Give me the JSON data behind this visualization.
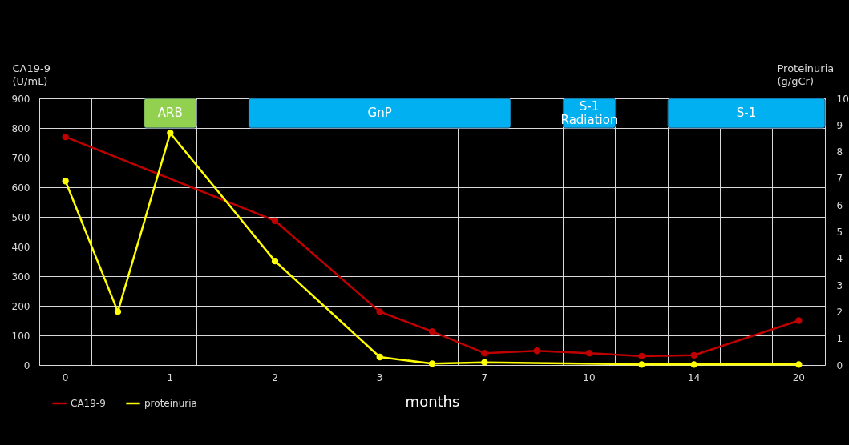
{
  "chart_data": {
    "type": "line",
    "categories": [
      "0",
      null,
      "1",
      null,
      "2",
      null,
      "3",
      null,
      "7",
      null,
      "10",
      null,
      "14",
      null,
      "20"
    ],
    "xlabel": "months",
    "ylabel": "CA19-9\n(U/mL)",
    "y2label": "Proteinuria\n(g/gCr)",
    "ylim": [
      0,
      900
    ],
    "yticks": [
      0,
      100,
      200,
      300,
      400,
      500,
      600,
      700,
      800,
      900
    ],
    "y2lim": [
      0,
      10
    ],
    "y2ticks": [
      0,
      1,
      2,
      3,
      4,
      5,
      6,
      7,
      8,
      9,
      10
    ],
    "series": [
      {
        "name": "CA19-9",
        "color": "#c00000",
        "values": [
          770,
          null,
          null,
          null,
          487,
          null,
          180,
          113,
          40,
          48,
          40,
          30,
          33,
          null,
          150
        ]
      },
      {
        "name": "proteinuria",
        "color": "#ffff00",
        "axis": "y2",
        "values": [
          6.9,
          2.0,
          8.7,
          null,
          3.9,
          null,
          0.3,
          0.05,
          0.1,
          null,
          null,
          0.02,
          0.02,
          null,
          0.02
        ]
      }
    ],
    "bands": [
      {
        "axis": "x",
        "from": "1",
        "to": "1",
        "label": "ARB",
        "color": "#92d050"
      },
      {
        "axis": "x",
        "from": "2",
        "to": "7",
        "label": "GnP",
        "color": "#00b0f0"
      },
      {
        "axis": "x",
        "from": "10",
        "to": "10",
        "label": "S-1\nRadiation",
        "color": "#00b0f0"
      },
      {
        "axis": "x",
        "from": "14",
        "to": "20",
        "label": "S-1",
        "color": "#00b0f0"
      }
    ],
    "grid": true,
    "marker": "circle",
    "legend": "bottom left"
  }
}
